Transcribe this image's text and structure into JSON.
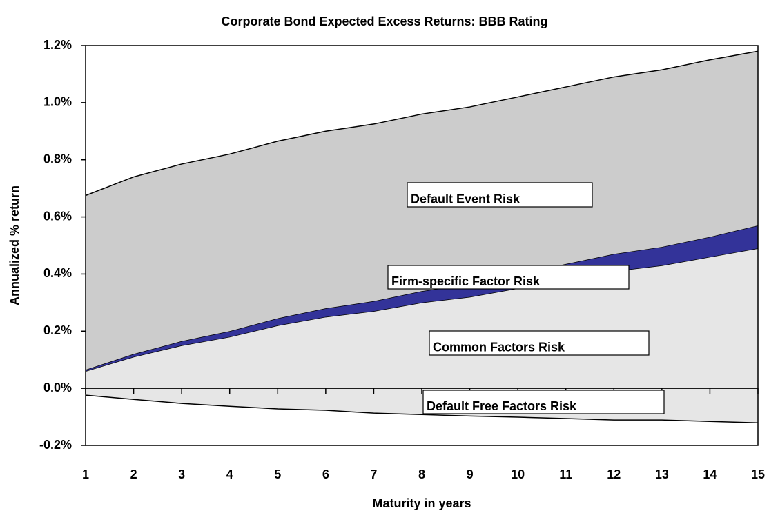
{
  "chart_data": {
    "type": "area",
    "title": "Corporate Bond Expected Excess Returns: BBB Rating",
    "x_label": "Maturity in years",
    "y_label": "Annualized % return",
    "x": [
      1,
      2,
      3,
      4,
      5,
      6,
      7,
      8,
      9,
      10,
      11,
      12,
      13,
      14,
      15
    ],
    "xlim": [
      1,
      15
    ],
    "xticks": [
      1,
      2,
      3,
      4,
      5,
      6,
      7,
      8,
      9,
      10,
      11,
      12,
      13,
      14,
      15
    ],
    "ylim": [
      -0.2,
      1.2
    ],
    "yticks": [
      {
        "value": -0.2,
        "label": "-0.2%"
      },
      {
        "value": 0,
        "label": "0.0%"
      },
      {
        "value": 0.2,
        "label": "0.2%"
      },
      {
        "value": 0.4,
        "label": "0.4%"
      },
      {
        "value": 0.6,
        "label": "0.6%"
      },
      {
        "value": 0.8,
        "label": "0.8%"
      },
      {
        "value": 1.0,
        "label": "1.0%"
      },
      {
        "value": 1.2,
        "label": "1.2%"
      }
    ],
    "stacked": true,
    "series": [
      {
        "name": "Common Factors Risk",
        "color": "#e6e6e6",
        "values": [
          0.06,
          0.11,
          0.15,
          0.18,
          0.22,
          0.25,
          0.27,
          0.3,
          0.32,
          0.35,
          0.38,
          0.41,
          0.43,
          0.46,
          0.49
        ]
      },
      {
        "name": "Firm-specific Factor Risk",
        "color": "#333399",
        "values": [
          0.005,
          0.01,
          0.015,
          0.02,
          0.025,
          0.03,
          0.035,
          0.04,
          0.045,
          0.05,
          0.055,
          0.06,
          0.065,
          0.07,
          0.08
        ]
      },
      {
        "name": "Default Event Risk",
        "color": "#cccccc",
        "values": [
          0.61,
          0.62,
          0.62,
          0.62,
          0.62,
          0.62,
          0.62,
          0.62,
          0.62,
          0.62,
          0.62,
          0.62,
          0.62,
          0.62,
          0.61
        ]
      },
      {
        "name": "Default Free Factors Risk",
        "color": "#e6e6e6",
        "values": [
          -0.024,
          -0.039,
          -0.053,
          -0.063,
          -0.072,
          -0.077,
          -0.087,
          -0.092,
          -0.097,
          -0.101,
          -0.106,
          -0.111,
          -0.111,
          -0.116,
          -0.121
        ]
      }
    ]
  }
}
